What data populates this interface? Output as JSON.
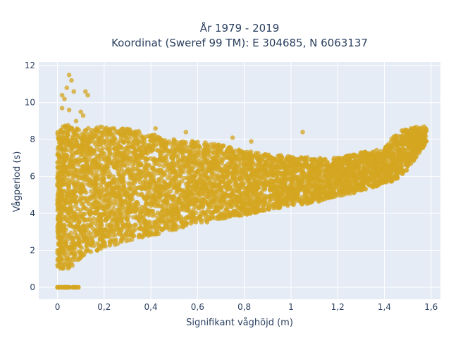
{
  "chart_data": {
    "type": "scatter",
    "title_line1": "År 1979 - 2019",
    "title_line2": "Koordinat (Sweref 99 TM): E 304685, N 6063137",
    "xlabel": "Signifikant våghöjd (m)",
    "ylabel": "Vågperiod (s)",
    "xlim": [
      -0.08,
      1.64
    ],
    "ylim": [
      -0.65,
      12.2
    ],
    "xticks": [
      0,
      0.2,
      0.4,
      0.6,
      0.8,
      1,
      1.2,
      1.4,
      1.6
    ],
    "xtick_labels": [
      "0",
      "0,2",
      "0,4",
      "0,6",
      "0,8",
      "1",
      "1,2",
      "1,4",
      "1,6"
    ],
    "yticks": [
      0,
      2,
      4,
      6,
      8,
      10,
      12
    ],
    "ytick_labels": [
      "0",
      "2",
      "4",
      "6",
      "8",
      "10",
      "12"
    ],
    "grid": true,
    "marker_color": "#d4a520",
    "background": "#e5ecf6",
    "envelope": {
      "x": [
        0,
        0.05,
        0.1,
        0.2,
        0.3,
        0.4,
        0.5,
        0.6,
        0.7,
        0.8,
        0.9,
        1.0,
        1.1,
        1.2,
        1.3,
        1.4,
        1.45,
        1.5,
        1.55,
        1.58
      ],
      "y_min": [
        1.0,
        1.0,
        1.6,
        2.1,
        2.5,
        2.8,
        3.1,
        3.4,
        3.7,
        3.9,
        4.2,
        4.4,
        4.6,
        4.9,
        5.2,
        5.6,
        5.8,
        6.4,
        7.3,
        7.8
      ],
      "y_max": [
        8.5,
        8.9,
        8.6,
        8.7,
        8.6,
        8.3,
        8.0,
        7.9,
        7.7,
        7.4,
        7.2,
        7.1,
        7.0,
        7.0,
        7.3,
        7.5,
        8.4,
        8.6,
        8.7,
        8.6
      ]
    },
    "zero_points": {
      "x_range": [
        0,
        0.09
      ],
      "y": 0
    },
    "outliers": [
      {
        "x": 0.05,
        "y": 11.5
      },
      {
        "x": 0.06,
        "y": 11.2
      },
      {
        "x": 0.04,
        "y": 10.8
      },
      {
        "x": 0.02,
        "y": 10.4
      },
      {
        "x": 0.03,
        "y": 10.2
      },
      {
        "x": 0.07,
        "y": 10.6
      },
      {
        "x": 0.12,
        "y": 10.6
      },
      {
        "x": 0.13,
        "y": 10.4
      },
      {
        "x": 0.02,
        "y": 9.7
      },
      {
        "x": 0.05,
        "y": 9.6
      },
      {
        "x": 0.1,
        "y": 9.5
      },
      {
        "x": 0.11,
        "y": 9.3
      },
      {
        "x": 0.08,
        "y": 9.0
      },
      {
        "x": 0.42,
        "y": 8.6
      },
      {
        "x": 1.05,
        "y": 8.4
      },
      {
        "x": 0.55,
        "y": 8.4
      },
      {
        "x": 0.75,
        "y": 8.1
      },
      {
        "x": 0.83,
        "y": 7.9
      },
      {
        "x": 1.45,
        "y": 8.2
      },
      {
        "x": 1.48,
        "y": 8.4
      },
      {
        "x": 1.55,
        "y": 8.6
      },
      {
        "x": 1.52,
        "y": 8.0
      },
      {
        "x": 1.57,
        "y": 8.7
      },
      {
        "x": 1.5,
        "y": 7.9
      }
    ]
  }
}
